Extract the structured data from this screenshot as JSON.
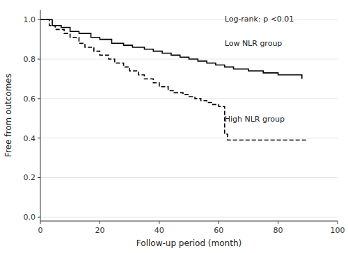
{
  "chart_data": {
    "type": "step",
    "x_label": "Follow-up period (month)",
    "y_label": "Free from outcomes",
    "xlim": [
      0,
      100
    ],
    "ylim": [
      -0.02,
      1.05
    ],
    "xticks": [
      0,
      20,
      40,
      60,
      80,
      100
    ],
    "yticks": [
      {
        "value": 0,
        "label": "0.0"
      },
      0.2,
      0.4,
      0.6,
      0.8,
      {
        "value": 1,
        "label": "1.0"
      }
    ],
    "annotations": [
      "Log-rank: p <0.01",
      "Low NLR group",
      "High NLR group"
    ],
    "series": [
      {
        "color": "#000000",
        "line_style": "solid",
        "x": [
          0,
          4,
          7,
          10,
          13,
          17,
          20,
          24,
          28,
          31,
          35,
          38,
          41,
          44,
          47,
          50,
          53,
          56,
          59,
          62,
          65,
          70,
          75,
          80,
          88
        ],
        "values": [
          1.0,
          0.97,
          0.96,
          0.94,
          0.93,
          0.91,
          0.9,
          0.88,
          0.87,
          0.86,
          0.85,
          0.84,
          0.83,
          0.82,
          0.81,
          0.8,
          0.79,
          0.78,
          0.77,
          0.76,
          0.75,
          0.74,
          0.73,
          0.72,
          0.7
        ]
      },
      {
        "color": "#000000",
        "line_style": "dashed",
        "x": [
          0,
          3,
          5,
          8,
          10,
          13,
          15,
          18,
          20,
          23,
          25,
          28,
          30,
          33,
          35,
          38,
          40,
          43,
          45,
          48,
          50,
          52,
          54,
          56,
          58,
          60,
          62,
          63,
          90
        ],
        "values": [
          1.0,
          0.97,
          0.95,
          0.93,
          0.91,
          0.88,
          0.86,
          0.84,
          0.82,
          0.8,
          0.78,
          0.76,
          0.74,
          0.72,
          0.7,
          0.68,
          0.66,
          0.64,
          0.63,
          0.62,
          0.61,
          0.6,
          0.59,
          0.58,
          0.57,
          0.56,
          0.42,
          0.39,
          0.39
        ]
      }
    ]
  }
}
